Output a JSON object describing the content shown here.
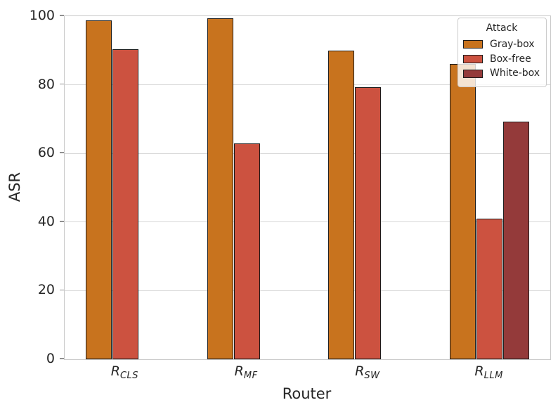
{
  "chart_data": {
    "type": "bar",
    "title": "",
    "xlabel": "Router",
    "ylabel": "ASR",
    "ylim": [
      0,
      100
    ],
    "yticks": [
      0,
      20,
      40,
      60,
      80,
      100
    ],
    "grid": true,
    "categories": [
      "R_CLS",
      "R_MF",
      "R_SW",
      "R_LLM"
    ],
    "category_display": [
      {
        "base": "R",
        "sub": "CLS"
      },
      {
        "base": "R",
        "sub": "MF"
      },
      {
        "base": "R",
        "sub": "SW"
      },
      {
        "base": "R",
        "sub": "LLM"
      }
    ],
    "series": [
      {
        "name": "Gray-box",
        "color": "#c8731e",
        "values": [
          98.8,
          99.4,
          89.9,
          86.1
        ]
      },
      {
        "name": "Box-free",
        "color": "#cc5240",
        "values": [
          90.4,
          62.9,
          79.4,
          40.9
        ]
      },
      {
        "name": "White-box",
        "color": "#943a3a",
        "values": [
          null,
          null,
          null,
          69.3
        ]
      }
    ],
    "legend": {
      "title": "Attack",
      "position": "upper-right"
    }
  }
}
